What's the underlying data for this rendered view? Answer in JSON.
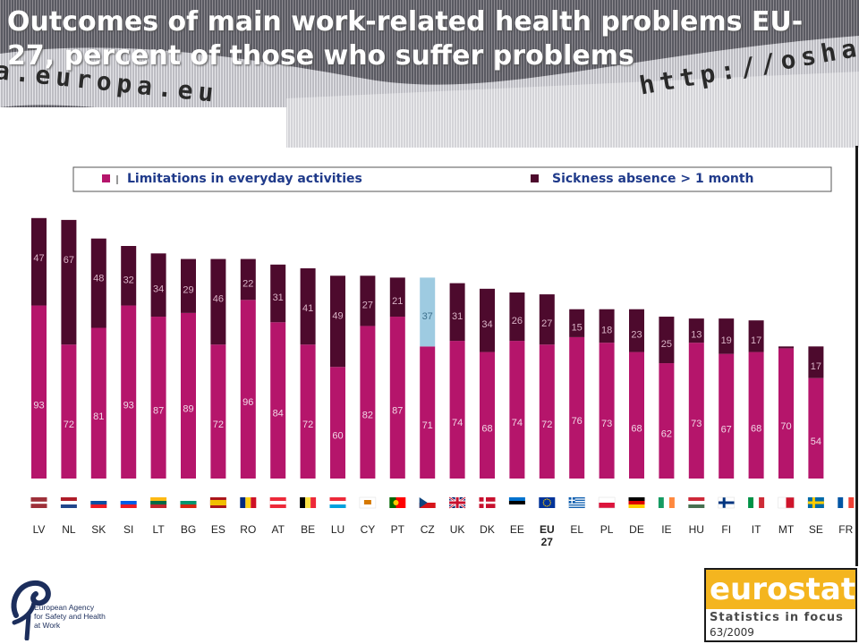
{
  "slide": {
    "title": "Outcomes of main work-related health problems EU-27, percent of those who suffer problems",
    "url_left": "a.europa.eu",
    "url_right": "http://osha"
  },
  "colors": {
    "limitations": "#b5156b",
    "sickness": "#4d0a2d",
    "highlight_czech": "#9ecbe1",
    "banner_dark": "#4a4a52",
    "banner_light": "#c8c8cc"
  },
  "chart_data": {
    "type": "bar",
    "stacked": true,
    "categories": [
      "LV",
      "NL",
      "SK",
      "SI",
      "LT",
      "BG",
      "ES",
      "RO",
      "AT",
      "BE",
      "LU",
      "CY",
      "PT",
      "CZ",
      "UK",
      "DK",
      "EE",
      "EU 27",
      "EL",
      "PL",
      "DE",
      "IE",
      "HU",
      "FI",
      "IT",
      "MT",
      "SE",
      "FR"
    ],
    "series": [
      {
        "name": "Limitations in everyday activities",
        "color": "#b5156b",
        "values": [
          93,
          72,
          81,
          93,
          87,
          89,
          72,
          96,
          84,
          72,
          60,
          82,
          87,
          71,
          74,
          68,
          74,
          72,
          76,
          73,
          68,
          62,
          73,
          67,
          68,
          70,
          54,
          null
        ]
      },
      {
        "name": "Sickness absence > 1 month",
        "color": "#4d0a2d",
        "values": [
          47,
          67,
          48,
          32,
          34,
          29,
          46,
          22,
          31,
          41,
          49,
          27,
          21,
          37,
          31,
          34,
          26,
          27,
          15,
          18,
          23,
          25,
          13,
          19,
          17,
          1,
          17,
          null
        ]
      }
    ],
    "legend_position": "top",
    "grid": false
  },
  "flags": [
    "lv-flag",
    "nl-flag",
    "sk-flag",
    "si-flag",
    "lt-flag",
    "bg-flag",
    "es-flag",
    "ro-flag",
    "at-flag",
    "be-flag",
    "lu-flag",
    "cy-flag",
    "pt-flag",
    "cz-flag",
    "uk-flag",
    "dk-flag",
    "ee-flag",
    "eu-flag",
    "el-flag",
    "pl-flag",
    "de-flag",
    "ie-flag",
    "hu-flag",
    "fi-flag",
    "it-flag",
    "mt-flag",
    "se-flag",
    "fr-flag"
  ],
  "logos": {
    "agency_name": "European Agency\nfor Safety and Health\nat Work",
    "eurostat_word": "eurostat",
    "eurostat_series": "Statistics in focus",
    "eurostat_issue": "63/2009"
  }
}
